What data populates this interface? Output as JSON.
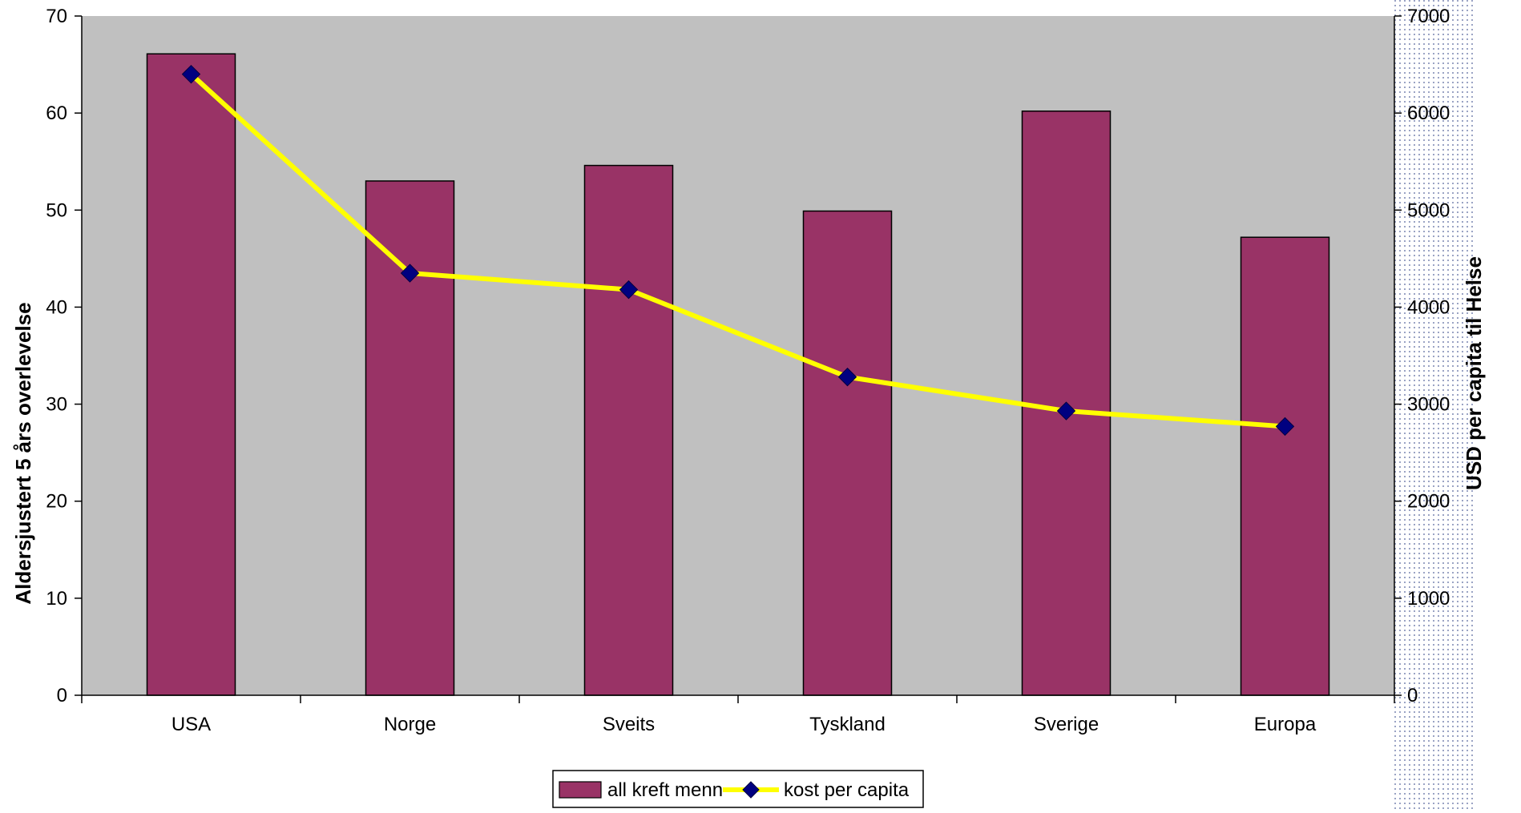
{
  "chart_data": {
    "type": "bar",
    "categories": [
      "USA",
      "Norge",
      "Sveits",
      "Tyskland",
      "Sverige",
      "Europa"
    ],
    "series": [
      {
        "name": "all kreft menn",
        "type": "bar",
        "axis": "left",
        "values": [
          66.1,
          53.0,
          54.6,
          49.9,
          60.2,
          47.2
        ]
      },
      {
        "name": "kost per capita",
        "type": "line",
        "axis": "right",
        "values": [
          6400,
          4350,
          4180,
          3280,
          2930,
          2770
        ]
      }
    ],
    "ylabel": "Aldersjustert 5 års overlevelse",
    "ylabel_right": "USD per capita til Helse",
    "ylim": [
      0,
      70
    ],
    "yticks": [
      "0",
      "10",
      "20",
      "30",
      "40",
      "50",
      "60",
      "70"
    ],
    "ylim_right": [
      0,
      7000
    ],
    "yticks_right": [
      "0",
      "1000",
      "2000",
      "3000",
      "4000",
      "5000",
      "6000",
      "7000"
    ],
    "grid": false,
    "legend_position": "bottom",
    "colors": {
      "plot_background": "#c0c0c0",
      "bar_fill": "#993366",
      "line": "#ffff00",
      "marker": "#000080"
    }
  }
}
